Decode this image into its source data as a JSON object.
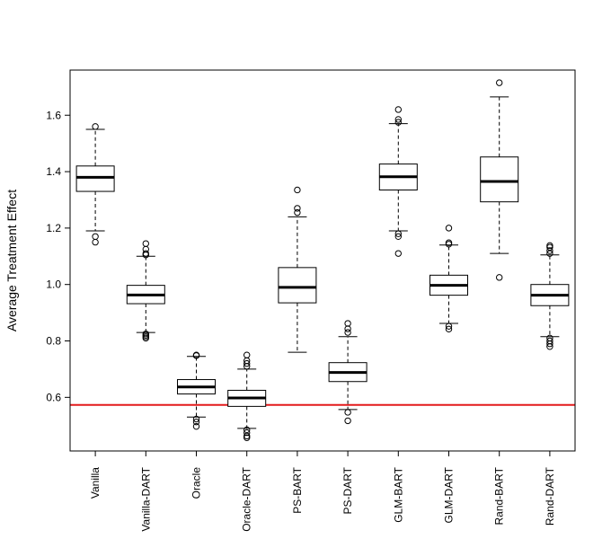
{
  "chart_data": {
    "type": "boxplot",
    "title": "",
    "xlabel": "",
    "ylabel": "Average Treatment Effect",
    "ylim": [
      0.41,
      1.76
    ],
    "yticks": [
      0.6,
      0.8,
      1.0,
      1.2,
      1.4,
      1.6
    ],
    "ytick_labels": [
      "0.6",
      "0.8",
      "1.0",
      "1.2",
      "1.4",
      "1.6"
    ],
    "reference_line": {
      "y": 0.573,
      "color": "#e31a1c"
    },
    "categories": [
      "Vanilla",
      "Vanilla-DART",
      "Oracle",
      "Oracle-DART",
      "PS-BART",
      "PS-DART",
      "GLM-BART",
      "GLM-DART",
      "Rand-BART",
      "Rand-DART"
    ],
    "boxes": [
      {
        "name": "Vanilla",
        "whisker_low": 1.19,
        "q1": 1.33,
        "median": 1.38,
        "q3": 1.42,
        "whisker_high": 1.55,
        "outliers": [
          1.56,
          1.17,
          1.15
        ]
      },
      {
        "name": "Vanilla-DART",
        "whisker_low": 0.83,
        "q1": 0.932,
        "median": 0.963,
        "q3": 0.997,
        "whisker_high": 1.1,
        "outliers": [
          1.145,
          1.125,
          1.11,
          1.105,
          0.825,
          0.82,
          0.815,
          0.81
        ]
      },
      {
        "name": "Oracle",
        "whisker_low": 0.53,
        "q1": 0.612,
        "median": 0.637,
        "q3": 0.663,
        "whisker_high": 0.745,
        "outliers": [
          0.75,
          0.748,
          0.523,
          0.513,
          0.497
        ]
      },
      {
        "name": "Oracle-DART",
        "whisker_low": 0.49,
        "q1": 0.568,
        "median": 0.598,
        "q3": 0.625,
        "whisker_high": 0.7,
        "outliers": [
          0.75,
          0.73,
          0.72,
          0.71,
          0.485,
          0.475,
          0.463,
          0.457
        ]
      },
      {
        "name": "PS-BART",
        "whisker_low": 0.76,
        "q1": 0.935,
        "median": 0.99,
        "q3": 1.06,
        "whisker_high": 1.24,
        "outliers": [
          1.335,
          1.27,
          1.255
        ]
      },
      {
        "name": "PS-DART",
        "whisker_low": 0.557,
        "q1": 0.656,
        "median": 0.688,
        "q3": 0.723,
        "whisker_high": 0.815,
        "outliers": [
          0.862,
          0.843,
          0.83,
          0.547,
          0.517
        ]
      },
      {
        "name": "GLM-BART",
        "whisker_low": 1.19,
        "q1": 1.335,
        "median": 1.382,
        "q3": 1.427,
        "whisker_high": 1.57,
        "outliers": [
          1.62,
          1.585,
          1.575,
          1.18,
          1.17,
          1.11
        ]
      },
      {
        "name": "GLM-DART",
        "whisker_low": 0.862,
        "q1": 0.962,
        "median": 0.997,
        "q3": 1.033,
        "whisker_high": 1.14,
        "outliers": [
          1.2,
          1.148,
          1.143,
          0.852,
          0.842
        ]
      },
      {
        "name": "Rand-BART",
        "whisker_low": 1.11,
        "q1": 1.293,
        "median": 1.365,
        "q3": 1.452,
        "whisker_high": 1.665,
        "outliers": [
          1.715,
          1.025
        ]
      },
      {
        "name": "Rand-DART",
        "whisker_low": 0.815,
        "q1": 0.925,
        "median": 0.962,
        "q3": 1.0,
        "whisker_high": 1.105,
        "outliers": [
          1.138,
          1.132,
          1.12,
          1.11,
          0.81,
          0.8,
          0.79,
          0.78
        ]
      }
    ]
  }
}
